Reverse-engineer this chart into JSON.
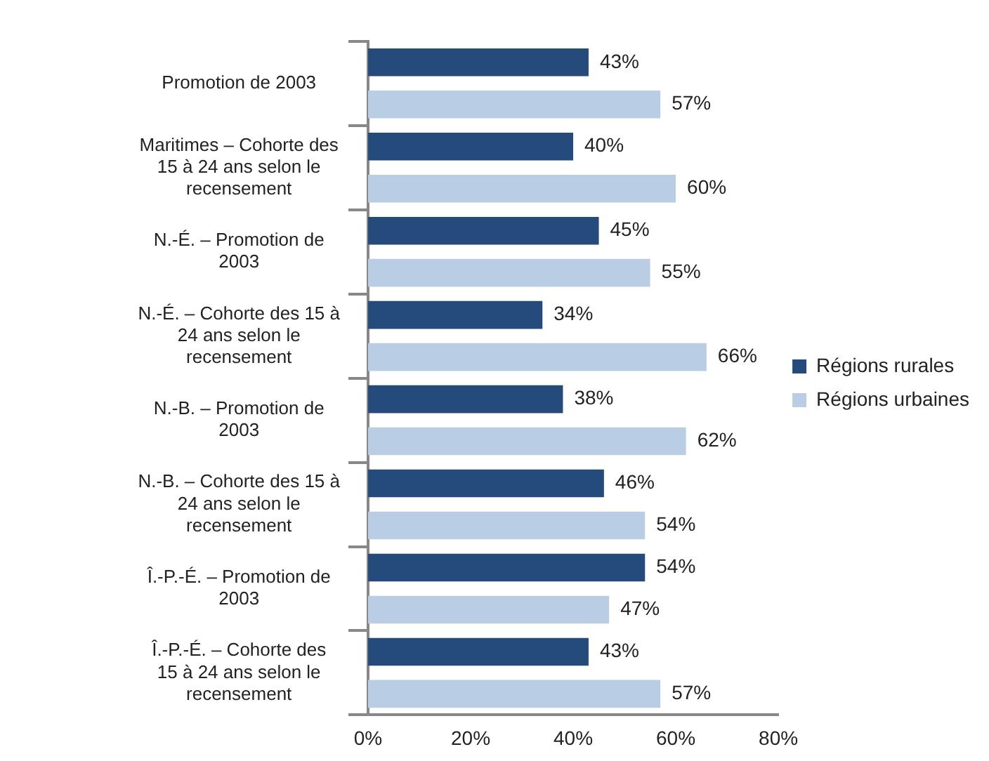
{
  "chart_data": {
    "type": "bar",
    "orientation": "horizontal",
    "categories": [
      "Promotion de 2003",
      "Maritimes – Cohorte des 15 à 24 ans selon le recensement",
      "N.-É. – Promotion de 2003",
      "N.-É. – Cohorte des 15 à 24 ans selon le recensement",
      "N.-B. – Promotion de 2003",
      "N.-B. – Cohorte des 15 à 24 ans selon le recensement",
      "Î.-P.-É. – Promotion de 2003",
      "Î.-P.-É. – Cohorte des 15 à 24 ans selon le recensement"
    ],
    "series": [
      {
        "name": "Régions rurales",
        "color": "#254a7c",
        "values": [
          43,
          40,
          45,
          34,
          38,
          46,
          54,
          43
        ],
        "value_labels": [
          "43%",
          "40%",
          "45%",
          "34%",
          "38%",
          "46%",
          "54%",
          "43%"
        ]
      },
      {
        "name": "Régions urbaines",
        "color": "#b9cde5",
        "values": [
          57,
          60,
          55,
          66,
          62,
          54,
          47,
          57
        ],
        "value_labels": [
          "57%",
          "60%",
          "55%",
          "66%",
          "62%",
          "54%",
          "47%",
          "57%"
        ]
      }
    ],
    "xlim": [
      0,
      80
    ],
    "xticks": [
      {
        "value": 0,
        "label": "0%"
      },
      {
        "value": 20,
        "label": "20%"
      },
      {
        "value": 40,
        "label": "40%"
      },
      {
        "value": 60,
        "label": "60%"
      },
      {
        "value": 80,
        "label": "80%"
      }
    ],
    "grid": false,
    "legend": "right"
  }
}
